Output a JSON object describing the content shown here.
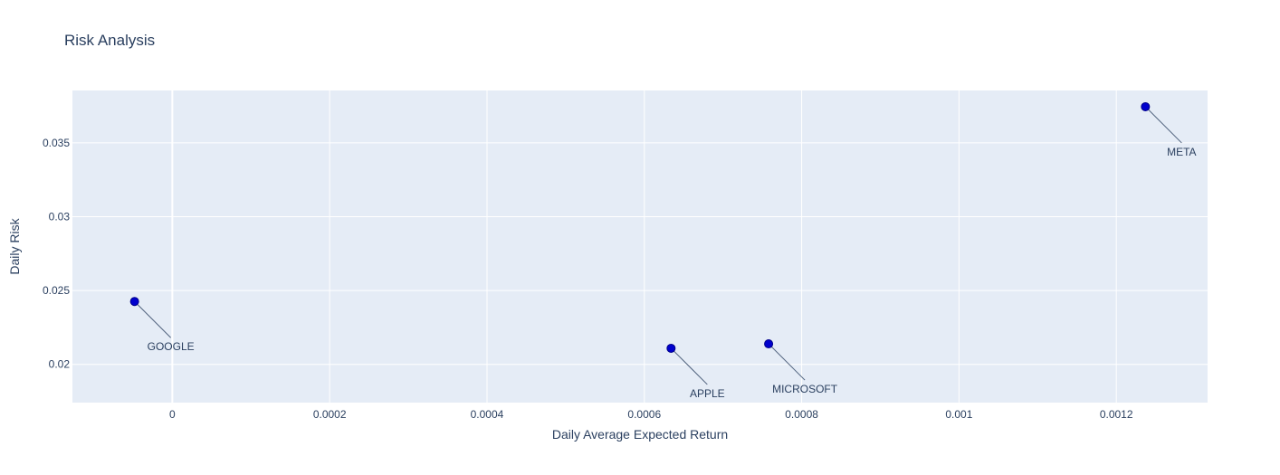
{
  "chart_data": {
    "type": "scatter",
    "title": "Risk Analysis",
    "xlabel": "Daily Average Expected Return",
    "ylabel": "Daily Risk",
    "xlim": [
      -0.000127,
      0.001316
    ],
    "ylim": [
      0.01741,
      0.03855
    ],
    "x_ticks": [
      0,
      0.0002,
      0.0004,
      0.0006,
      0.0008,
      0.001,
      0.0012
    ],
    "x_tick_labels": [
      "0",
      "0.0002",
      "0.0004",
      "0.0006",
      "0.0008",
      "0.001",
      "0.0012"
    ],
    "y_ticks": [
      0.02,
      0.025,
      0.03,
      0.035
    ],
    "y_tick_labels": [
      "0.02",
      "0.025",
      "0.03",
      "0.035"
    ],
    "grid": true,
    "marker_color": "#0000cd",
    "marker_edge_color": "#00008b",
    "plot_background": "#e5ecf6",
    "points": [
      {
        "label": "GOOGLE",
        "x": -4.8e-05,
        "y": 0.02426
      },
      {
        "label": "APPLE",
        "x": 0.000634,
        "y": 0.02109
      },
      {
        "label": "MICROSOFT",
        "x": 0.000758,
        "y": 0.02139
      },
      {
        "label": "META",
        "x": 0.001237,
        "y": 0.03745
      }
    ]
  }
}
